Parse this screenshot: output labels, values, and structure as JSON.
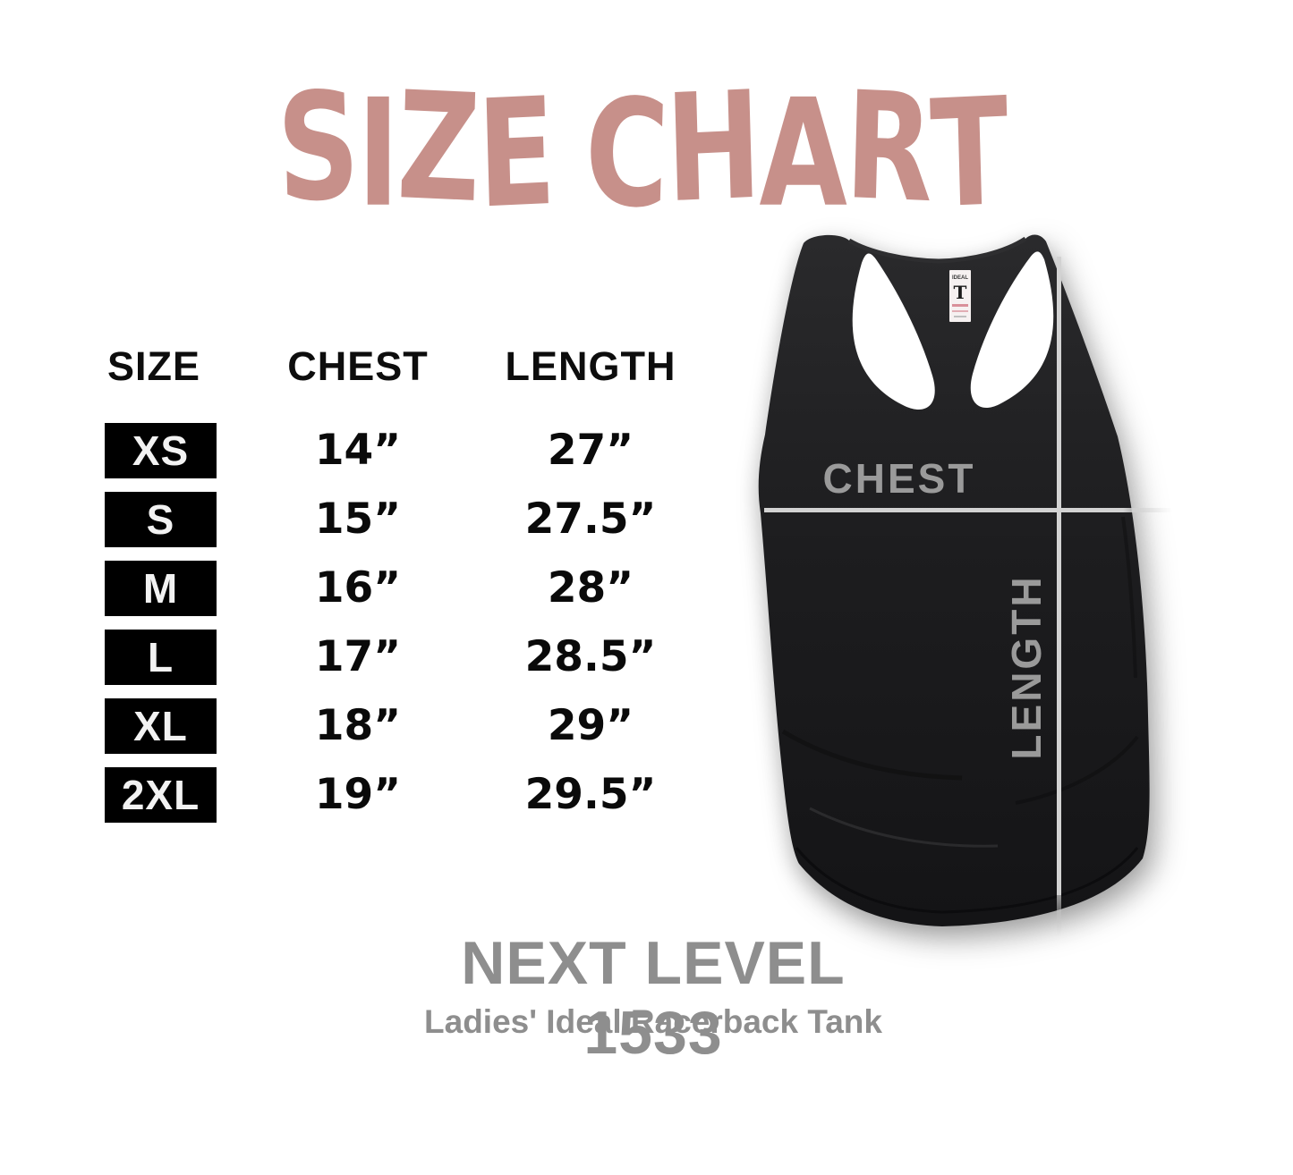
{
  "title": "SIZE CHART",
  "table": {
    "headers": {
      "size": "SIZE",
      "chest": "CHEST",
      "length": "LENGTH"
    },
    "rows": [
      {
        "size": "XS",
        "chest": "14”",
        "length": "27”"
      },
      {
        "size": "S",
        "chest": "15”",
        "length": "27.5”"
      },
      {
        "size": "M",
        "chest": "16”",
        "length": "28”"
      },
      {
        "size": "L",
        "chest": "17”",
        "length": "28.5”"
      },
      {
        "size": "XL",
        "chest": "18”",
        "length": "29”"
      },
      {
        "size": "2XL",
        "chest": "19”",
        "length": "29.5”"
      }
    ]
  },
  "garment": {
    "chest_label": "CHEST",
    "length_label": "LENGTH",
    "tag_brand": "IDEAL",
    "tag_letter": "T"
  },
  "footer": {
    "product": "NEXT LEVEL 1533",
    "subtitle": "Ladies' Ideal Racerback Tank"
  },
  "colors": {
    "title_rose": "#c7908a",
    "table_black": "#000000",
    "value_ink": "#0a0a0a",
    "shirt_label_gray": "#9a9a9a",
    "footer_gray": "#8e8e8e",
    "measure_line": "#d2d2d2",
    "shirt_black": "#1d1d1f"
  },
  "chart_data": {
    "type": "table",
    "title": "SIZE CHART",
    "columns": [
      "SIZE",
      "CHEST",
      "LENGTH"
    ],
    "rows": [
      [
        "XS",
        "14”",
        "27”"
      ],
      [
        "S",
        "15”",
        "27.5”"
      ],
      [
        "M",
        "16”",
        "28”"
      ],
      [
        "L",
        "17”",
        "28.5”"
      ],
      [
        "XL",
        "18”",
        "29”"
      ],
      [
        "2XL",
        "19”",
        "29.5”"
      ]
    ],
    "units": "inches",
    "chest_values_in": [
      14,
      15,
      16,
      17,
      18,
      19
    ],
    "length_values_in": [
      27,
      27.5,
      28,
      28.5,
      29,
      29.5
    ],
    "product": "NEXT LEVEL 1533",
    "product_description": "Ladies' Ideal Racerback Tank"
  }
}
